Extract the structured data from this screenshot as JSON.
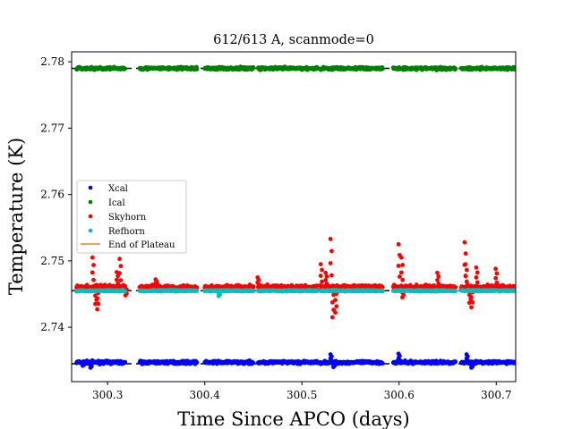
{
  "chart_data": {
    "type": "scatter",
    "title": "612/613 A, scanmode=0",
    "xlabel": "Time Since APCO (days)",
    "ylabel": "Temperature (K)",
    "xlim": [
      300.263,
      300.72
    ],
    "ylim": [
      2.7318,
      2.7815
    ],
    "xticks": [
      300.3,
      300.4,
      300.5,
      300.6,
      300.7
    ],
    "xtick_labels": [
      "300.3",
      "300.4",
      "300.5",
      "300.6",
      "300.7"
    ],
    "yticks": [
      2.74,
      2.75,
      2.76,
      2.77,
      2.78
    ],
    "ytick_labels": [
      "2.74",
      "2.75",
      "2.76",
      "2.77",
      "2.78"
    ],
    "grid": false,
    "legend_position": "center-left",
    "dashed_reference_levels": [
      2.779,
      2.7455,
      2.7345
    ],
    "segments": [
      [
        300.268,
        300.318
      ],
      [
        300.333,
        300.392
      ],
      [
        300.4,
        300.45
      ],
      [
        300.455,
        300.516
      ],
      [
        300.519,
        300.583
      ],
      [
        300.594,
        300.658
      ],
      [
        300.664,
        300.72
      ]
    ],
    "series": [
      {
        "name": "Xcal",
        "color": "#0000ff",
        "base": 2.7347,
        "noise": 0.0002,
        "spikes": [
          [
            300.275,
            -0.0005
          ],
          [
            300.283,
            -0.0008
          ],
          [
            300.53,
            0.0012
          ],
          [
            300.533,
            -0.0007
          ],
          [
            300.6,
            0.0013
          ],
          [
            300.67,
            0.0012
          ],
          [
            300.675,
            -0.0008
          ]
        ]
      },
      {
        "name": "Ical",
        "color": "#008000",
        "base": 2.779,
        "noise": 0.0002,
        "spikes": []
      },
      {
        "name": "Skyhorn",
        "color": "#ff0000",
        "base": 2.746,
        "noise": 0.00035,
        "spikes": [
          [
            300.285,
            0.0045
          ],
          [
            300.288,
            -0.0025
          ],
          [
            300.29,
            -0.0033
          ],
          [
            300.313,
            0.0043
          ],
          [
            300.31,
            0.0023
          ],
          [
            300.319,
            -0.0012
          ],
          [
            300.35,
            0.0012
          ],
          [
            300.455,
            0.0015
          ],
          [
            300.52,
            0.0035
          ],
          [
            300.525,
            0.0022
          ],
          [
            300.53,
            0.0073
          ],
          [
            300.532,
            -0.0045
          ],
          [
            300.535,
            -0.0038
          ],
          [
            300.6,
            0.0065
          ],
          [
            300.603,
            0.0045
          ],
          [
            300.604,
            -0.0015
          ],
          [
            300.64,
            0.0022
          ],
          [
            300.668,
            0.0068
          ],
          [
            300.669,
            0.0035
          ],
          [
            300.673,
            -0.0023
          ],
          [
            300.675,
            -0.003
          ],
          [
            300.68,
            0.003
          ],
          [
            300.7,
            0.0028
          ]
        ]
      },
      {
        "name": "Refhorn",
        "color": "#00bfbf",
        "base": 2.7455,
        "noise": 0.0001,
        "spikes": [
          [
            300.415,
            -0.0008
          ]
        ]
      },
      {
        "name": "End of Plateau",
        "color": "#ff7f0e",
        "type": "line",
        "values": []
      }
    ]
  }
}
